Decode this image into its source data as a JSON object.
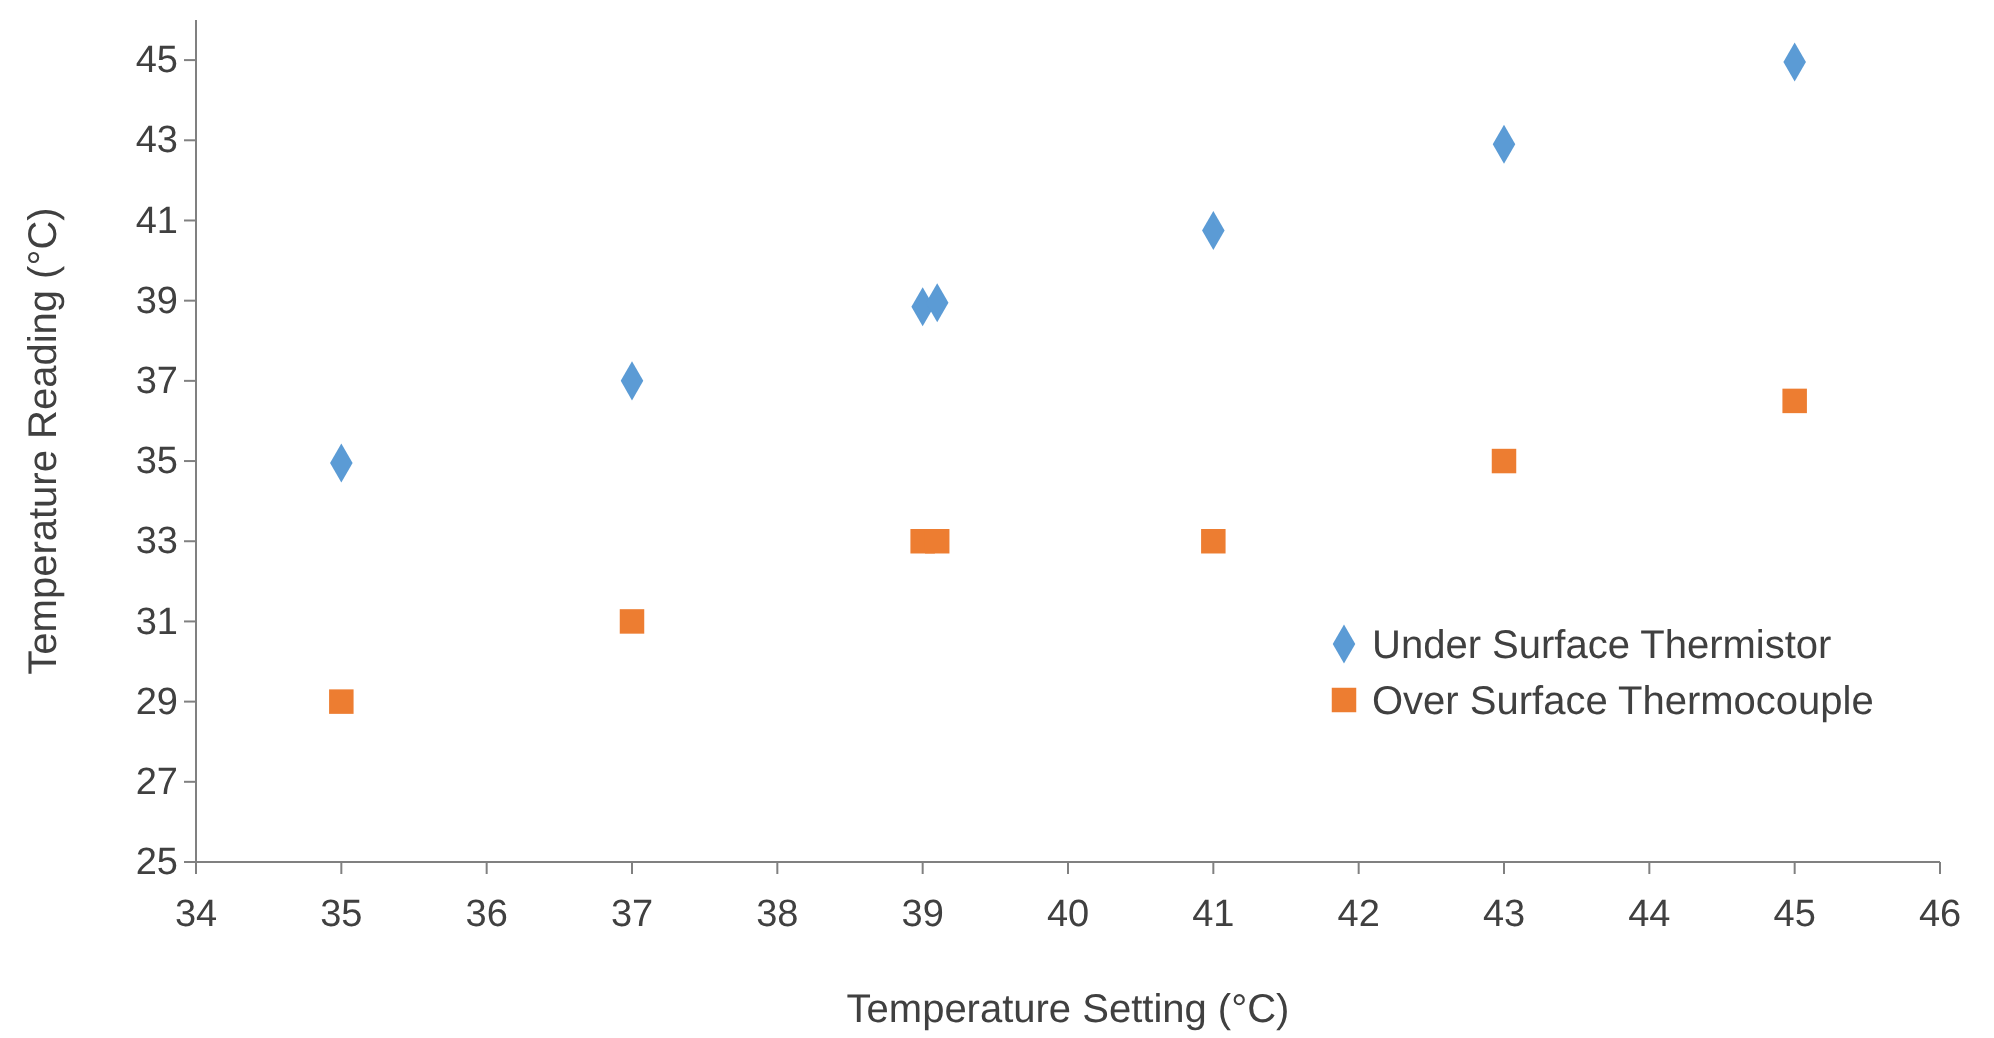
{
  "chart_data": {
    "type": "scatter",
    "xlabel": "Temperature Setting (°C)",
    "ylabel": "Temperature Reading (°C)",
    "xlim": [
      34,
      46
    ],
    "xticks": [
      34,
      35,
      36,
      37,
      38,
      39,
      40,
      41,
      42,
      43,
      44,
      45,
      46
    ],
    "ylim": [
      25,
      46
    ],
    "yticks": [
      25,
      27,
      29,
      31,
      33,
      35,
      37,
      39,
      41,
      43,
      45
    ],
    "grid": false,
    "legend": "right",
    "series": [
      {
        "name": "Under Surface Thermistor",
        "color": "#5b9bd5",
        "marker": "diamond",
        "x": [
          35,
          37,
          39,
          39.1,
          41,
          43,
          45
        ],
        "values": [
          34.95,
          37,
          38.85,
          38.95,
          40.75,
          42.9,
          44.95
        ]
      },
      {
        "name": "Over Surface Thermocouple",
        "color": "#ed7d31",
        "marker": "square",
        "x": [
          35,
          37,
          39,
          39.1,
          41,
          43,
          45
        ],
        "values": [
          29,
          31,
          33,
          33,
          33,
          35,
          36.5
        ]
      }
    ]
  }
}
